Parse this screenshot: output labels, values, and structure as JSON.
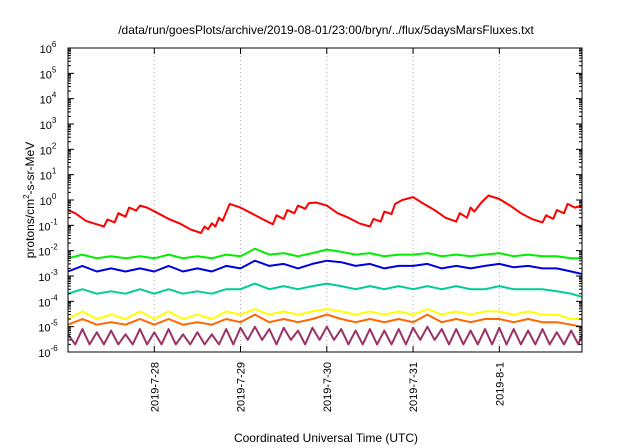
{
  "chart_data": {
    "type": "line",
    "title": "/data/run/goesPlots/archive/2019-08-01/23:00/bryn/../flux/5daysMarsFluxes.txt",
    "xlabel": "Coordinated Universal Time (UTC)",
    "ylabel": {
      "base": "protons/cm",
      "sup": "2",
      "rest": "-s-sr-MeV"
    },
    "y_scale": "log",
    "ylim": [
      1e-06,
      1000000.0
    ],
    "y_ticks": [
      {
        "base": "10",
        "exp": "-6",
        "value": 1e-06
      },
      {
        "base": "10",
        "exp": "-5",
        "value": 1e-05
      },
      {
        "base": "10",
        "exp": "-4",
        "value": 0.0001
      },
      {
        "base": "10",
        "exp": "-3",
        "value": 0.001
      },
      {
        "base": "10",
        "exp": "-2",
        "value": 0.01
      },
      {
        "base": "10",
        "exp": "-1",
        "value": 0.1
      },
      {
        "base": "10",
        "exp": "0",
        "value": 1
      },
      {
        "base": "10",
        "exp": "1",
        "value": 10
      },
      {
        "base": "10",
        "exp": "2",
        "value": 100
      },
      {
        "base": "10",
        "exp": "3",
        "value": 1000
      },
      {
        "base": "10",
        "exp": "4",
        "value": 10000
      },
      {
        "base": "10",
        "exp": "5",
        "value": 100000
      },
      {
        "base": "10",
        "exp": "6",
        "value": 1000000
      }
    ],
    "xlim": [
      "2019-07-27 00:00",
      "2019-08-01 23:00"
    ],
    "x_ticks": [
      {
        "label": "2019-7-28",
        "value": "2019-07-28 00:00"
      },
      {
        "label": "2019-7-29",
        "value": "2019-07-29 00:00"
      },
      {
        "label": "2019-7-30",
        "value": "2019-07-30 00:00"
      },
      {
        "label": "2019-7-31",
        "value": "2019-07-31 00:00"
      },
      {
        "label": "2019-8-1",
        "value": "2019-08-01 00:00"
      }
    ],
    "grid": "vertical dotted at x ticks",
    "series": [
      {
        "color": "#ff0000",
        "x": [
          "2019-07-27 00:00",
          "2019-07-27 02:00",
          "2019-07-27 05:00",
          "2019-07-27 08:00",
          "2019-07-27 10:00",
          "2019-07-27 11:00",
          "2019-07-27 13:00",
          "2019-07-27 14:00",
          "2019-07-27 16:00",
          "2019-07-27 17:00",
          "2019-07-27 19:00",
          "2019-07-27 20:00",
          "2019-07-27 22:00",
          "2019-07-28 01:00",
          "2019-07-28 04:00",
          "2019-07-28 07:00",
          "2019-07-28 10:00",
          "2019-07-28 13:00",
          "2019-07-28 14:00",
          "2019-07-28 15:00",
          "2019-07-28 16:00",
          "2019-07-28 17:00",
          "2019-07-28 18:00",
          "2019-07-28 19:00",
          "2019-07-28 21:00",
          "2019-07-29 00:00",
          "2019-07-29 03:00",
          "2019-07-29 06:00",
          "2019-07-29 09:00",
          "2019-07-29 10:00",
          "2019-07-29 12:00",
          "2019-07-29 13:00",
          "2019-07-29 15:00",
          "2019-07-29 16:00",
          "2019-07-29 18:00",
          "2019-07-29 19:00",
          "2019-07-29 21:00",
          "2019-07-30 00:00",
          "2019-07-30 03:00",
          "2019-07-30 06:00",
          "2019-07-30 09:00",
          "2019-07-30 12:00",
          "2019-07-30 13:00",
          "2019-07-30 15:00",
          "2019-07-30 16:00",
          "2019-07-30 18:00",
          "2019-07-30 19:00",
          "2019-07-30 21:00",
          "2019-07-31 00:00",
          "2019-07-31 03:00",
          "2019-07-31 06:00",
          "2019-07-31 09:00",
          "2019-07-31 12:00",
          "2019-07-31 13:00",
          "2019-07-31 15:00",
          "2019-07-31 16:00",
          "2019-07-31 17:00",
          "2019-07-31 19:00",
          "2019-07-31 21:00",
          "2019-08-01 00:00",
          "2019-08-01 03:00",
          "2019-08-01 06:00",
          "2019-08-01 09:00",
          "2019-08-01 12:00",
          "2019-08-01 13:00",
          "2019-08-01 15:00",
          "2019-08-01 16:00",
          "2019-08-01 18:00",
          "2019-08-01 19:00",
          "2019-08-01 21:00",
          "2019-08-01 23:00"
        ],
        "values": [
          0.4,
          0.3,
          0.15,
          0.11,
          0.09,
          0.17,
          0.13,
          0.3,
          0.22,
          0.5,
          0.38,
          0.6,
          0.5,
          0.3,
          0.18,
          0.12,
          0.07,
          0.05,
          0.09,
          0.07,
          0.12,
          0.09,
          0.2,
          0.15,
          0.7,
          0.5,
          0.3,
          0.18,
          0.11,
          0.25,
          0.18,
          0.4,
          0.3,
          0.6,
          0.45,
          0.75,
          0.8,
          0.6,
          0.3,
          0.2,
          0.12,
          0.09,
          0.18,
          0.14,
          0.35,
          0.28,
          0.7,
          1.0,
          1.3,
          0.7,
          0.4,
          0.2,
          0.14,
          0.3,
          0.2,
          0.5,
          0.35,
          0.8,
          1.5,
          1.1,
          0.6,
          0.3,
          0.18,
          0.13,
          0.25,
          0.18,
          0.4,
          0.3,
          0.7,
          0.5,
          0.6
        ]
      },
      {
        "color": "#00ee00",
        "x": [
          "2019-07-27 00:00",
          "2019-07-27 04:00",
          "2019-07-27 08:00",
          "2019-07-27 12:00",
          "2019-07-27 16:00",
          "2019-07-27 20:00",
          "2019-07-28 00:00",
          "2019-07-28 04:00",
          "2019-07-28 08:00",
          "2019-07-28 12:00",
          "2019-07-28 16:00",
          "2019-07-28 20:00",
          "2019-07-29 00:00",
          "2019-07-29 04:00",
          "2019-07-29 08:00",
          "2019-07-29 12:00",
          "2019-07-29 16:00",
          "2019-07-29 20:00",
          "2019-07-30 00:00",
          "2019-07-30 04:00",
          "2019-07-30 08:00",
          "2019-07-30 12:00",
          "2019-07-30 16:00",
          "2019-07-30 20:00",
          "2019-07-31 00:00",
          "2019-07-31 04:00",
          "2019-07-31 08:00",
          "2019-07-31 12:00",
          "2019-07-31 16:00",
          "2019-07-31 20:00",
          "2019-08-01 00:00",
          "2019-08-01 04:00",
          "2019-08-01 08:00",
          "2019-08-01 12:00",
          "2019-08-01 16:00",
          "2019-08-01 20:00",
          "2019-08-01 23:00"
        ],
        "values": [
          0.005,
          0.007,
          0.005,
          0.006,
          0.005,
          0.006,
          0.005,
          0.007,
          0.005,
          0.006,
          0.005,
          0.007,
          0.006,
          0.012,
          0.007,
          0.008,
          0.006,
          0.008,
          0.011,
          0.009,
          0.007,
          0.008,
          0.006,
          0.007,
          0.007,
          0.008,
          0.006,
          0.007,
          0.006,
          0.007,
          0.008,
          0.006,
          0.007,
          0.006,
          0.006,
          0.005,
          0.005
        ]
      },
      {
        "color": "#0000dd",
        "x": [
          "2019-07-27 00:00",
          "2019-07-27 04:00",
          "2019-07-27 08:00",
          "2019-07-27 12:00",
          "2019-07-27 16:00",
          "2019-07-27 20:00",
          "2019-07-28 00:00",
          "2019-07-28 04:00",
          "2019-07-28 08:00",
          "2019-07-28 12:00",
          "2019-07-28 16:00",
          "2019-07-28 20:00",
          "2019-07-29 00:00",
          "2019-07-29 04:00",
          "2019-07-29 08:00",
          "2019-07-29 12:00",
          "2019-07-29 16:00",
          "2019-07-29 20:00",
          "2019-07-30 00:00",
          "2019-07-30 04:00",
          "2019-07-30 08:00",
          "2019-07-30 12:00",
          "2019-07-30 16:00",
          "2019-07-30 20:00",
          "2019-07-31 00:00",
          "2019-07-31 04:00",
          "2019-07-31 08:00",
          "2019-07-31 12:00",
          "2019-07-31 16:00",
          "2019-07-31 20:00",
          "2019-08-01 00:00",
          "2019-08-01 04:00",
          "2019-08-01 08:00",
          "2019-08-01 12:00",
          "2019-08-01 16:00",
          "2019-08-01 20:00",
          "2019-08-01 23:00"
        ],
        "values": [
          0.0015,
          0.0025,
          0.0015,
          0.002,
          0.0015,
          0.002,
          0.0015,
          0.0025,
          0.0015,
          0.002,
          0.0015,
          0.0025,
          0.002,
          0.004,
          0.0025,
          0.003,
          0.002,
          0.003,
          0.004,
          0.0035,
          0.0025,
          0.003,
          0.002,
          0.0025,
          0.0025,
          0.003,
          0.002,
          0.0025,
          0.002,
          0.0025,
          0.003,
          0.0022,
          0.0025,
          0.002,
          0.002,
          0.0015,
          0.0012
        ]
      },
      {
        "color": "#00cc99",
        "x": [
          "2019-07-27 00:00",
          "2019-07-27 04:00",
          "2019-07-27 08:00",
          "2019-07-27 12:00",
          "2019-07-27 16:00",
          "2019-07-27 20:00",
          "2019-07-28 00:00",
          "2019-07-28 04:00",
          "2019-07-28 08:00",
          "2019-07-28 12:00",
          "2019-07-28 16:00",
          "2019-07-28 20:00",
          "2019-07-29 00:00",
          "2019-07-29 04:00",
          "2019-07-29 08:00",
          "2019-07-29 12:00",
          "2019-07-29 16:00",
          "2019-07-29 20:00",
          "2019-07-30 00:00",
          "2019-07-30 04:00",
          "2019-07-30 08:00",
          "2019-07-30 12:00",
          "2019-07-30 16:00",
          "2019-07-30 20:00",
          "2019-07-31 00:00",
          "2019-07-31 04:00",
          "2019-07-31 08:00",
          "2019-07-31 12:00",
          "2019-07-31 16:00",
          "2019-07-31 20:00",
          "2019-08-01 00:00",
          "2019-08-01 04:00",
          "2019-08-01 08:00",
          "2019-08-01 12:00",
          "2019-08-01 16:00",
          "2019-08-01 20:00",
          "2019-08-01 23:00"
        ],
        "values": [
          0.0002,
          0.0003,
          0.0002,
          0.00025,
          0.0002,
          0.0003,
          0.0002,
          0.0003,
          0.0002,
          0.00025,
          0.0002,
          0.0003,
          0.0003,
          0.0005,
          0.0003,
          0.0004,
          0.0003,
          0.0004,
          0.0005,
          0.0004,
          0.0003,
          0.0004,
          0.0003,
          0.0004,
          0.0003,
          0.0004,
          0.0003,
          0.0004,
          0.0003,
          0.0003,
          0.0004,
          0.0003,
          0.0003,
          0.0003,
          0.00025,
          0.0002,
          0.00015
        ]
      },
      {
        "color": "#ffff00",
        "x": [
          "2019-07-27 00:00",
          "2019-07-27 04:00",
          "2019-07-27 08:00",
          "2019-07-27 12:00",
          "2019-07-27 16:00",
          "2019-07-27 20:00",
          "2019-07-28 00:00",
          "2019-07-28 04:00",
          "2019-07-28 08:00",
          "2019-07-28 12:00",
          "2019-07-28 16:00",
          "2019-07-28 20:00",
          "2019-07-29 00:00",
          "2019-07-29 04:00",
          "2019-07-29 08:00",
          "2019-07-29 12:00",
          "2019-07-29 16:00",
          "2019-07-29 20:00",
          "2019-07-30 00:00",
          "2019-07-30 04:00",
          "2019-07-30 08:00",
          "2019-07-30 12:00",
          "2019-07-30 16:00",
          "2019-07-30 20:00",
          "2019-07-31 00:00",
          "2019-07-31 04:00",
          "2019-07-31 08:00",
          "2019-07-31 12:00",
          "2019-07-31 16:00",
          "2019-07-31 20:00",
          "2019-08-01 00:00",
          "2019-08-01 04:00",
          "2019-08-01 08:00",
          "2019-08-01 12:00",
          "2019-08-01 16:00",
          "2019-08-01 20:00",
          "2019-08-01 23:00"
        ],
        "values": [
          2e-05,
          4e-05,
          2e-05,
          3e-05,
          2e-05,
          4e-05,
          2e-05,
          4e-05,
          2e-05,
          3e-05,
          2e-05,
          4e-05,
          3e-05,
          5e-05,
          3e-05,
          4e-05,
          3e-05,
          4e-05,
          5e-05,
          4e-05,
          3e-05,
          4e-05,
          3e-05,
          4e-05,
          3e-05,
          5e-05,
          3e-05,
          4e-05,
          3e-05,
          4e-05,
          4e-05,
          3e-05,
          4e-05,
          3e-05,
          3e-05,
          2e-05,
          2e-05
        ]
      },
      {
        "color": "#ff6600",
        "x": [
          "2019-07-27 00:00",
          "2019-07-27 04:00",
          "2019-07-27 08:00",
          "2019-07-27 12:00",
          "2019-07-27 16:00",
          "2019-07-27 20:00",
          "2019-07-28 00:00",
          "2019-07-28 04:00",
          "2019-07-28 08:00",
          "2019-07-28 12:00",
          "2019-07-28 16:00",
          "2019-07-28 20:00",
          "2019-07-29 00:00",
          "2019-07-29 04:00",
          "2019-07-29 08:00",
          "2019-07-29 12:00",
          "2019-07-29 16:00",
          "2019-07-29 20:00",
          "2019-07-30 00:00",
          "2019-07-30 04:00",
          "2019-07-30 08:00",
          "2019-07-30 12:00",
          "2019-07-30 16:00",
          "2019-07-30 20:00",
          "2019-07-31 00:00",
          "2019-07-31 04:00",
          "2019-07-31 08:00",
          "2019-07-31 12:00",
          "2019-07-31 16:00",
          "2019-07-31 20:00",
          "2019-08-01 00:00",
          "2019-08-01 04:00",
          "2019-08-01 08:00",
          "2019-08-01 12:00",
          "2019-08-01 16:00",
          "2019-08-01 20:00",
          "2019-08-01 23:00"
        ],
        "values": [
          1.2e-05,
          2e-05,
          1.2e-05,
          1.5e-05,
          1.2e-05,
          2e-05,
          1.2e-05,
          2e-05,
          1.2e-05,
          1.5e-05,
          1.2e-05,
          2e-05,
          1.5e-05,
          3e-05,
          1.5e-05,
          2e-05,
          1.5e-05,
          2e-05,
          3e-05,
          2e-05,
          1.5e-05,
          2e-05,
          1.5e-05,
          2e-05,
          1.5e-05,
          3e-05,
          1.5e-05,
          2e-05,
          1.5e-05,
          2e-05,
          2e-05,
          1.5e-05,
          2e-05,
          1.5e-05,
          1.5e-05,
          1.2e-05,
          1e-05
        ]
      },
      {
        "color": "#993366",
        "x": [
          "2019-07-27 00:00",
          "2019-07-27 02:00",
          "2019-07-27 04:00",
          "2019-07-27 06:00",
          "2019-07-27 08:00",
          "2019-07-27 10:00",
          "2019-07-27 12:00",
          "2019-07-27 14:00",
          "2019-07-27 16:00",
          "2019-07-27 18:00",
          "2019-07-27 20:00",
          "2019-07-27 22:00",
          "2019-07-28 00:00",
          "2019-07-28 02:00",
          "2019-07-28 04:00",
          "2019-07-28 06:00",
          "2019-07-28 08:00",
          "2019-07-28 10:00",
          "2019-07-28 12:00",
          "2019-07-28 14:00",
          "2019-07-28 16:00",
          "2019-07-28 18:00",
          "2019-07-28 20:00",
          "2019-07-28 22:00",
          "2019-07-29 00:00",
          "2019-07-29 02:00",
          "2019-07-29 04:00",
          "2019-07-29 06:00",
          "2019-07-29 08:00",
          "2019-07-29 10:00",
          "2019-07-29 12:00",
          "2019-07-29 14:00",
          "2019-07-29 16:00",
          "2019-07-29 18:00",
          "2019-07-29 20:00",
          "2019-07-29 22:00",
          "2019-07-30 00:00",
          "2019-07-30 02:00",
          "2019-07-30 04:00",
          "2019-07-30 06:00",
          "2019-07-30 08:00",
          "2019-07-30 10:00",
          "2019-07-30 12:00",
          "2019-07-30 14:00",
          "2019-07-30 16:00",
          "2019-07-30 18:00",
          "2019-07-30 20:00",
          "2019-07-30 22:00",
          "2019-07-31 00:00",
          "2019-07-31 02:00",
          "2019-07-31 04:00",
          "2019-07-31 06:00",
          "2019-07-31 08:00",
          "2019-07-31 10:00",
          "2019-07-31 12:00",
          "2019-07-31 14:00",
          "2019-07-31 16:00",
          "2019-07-31 18:00",
          "2019-07-31 20:00",
          "2019-07-31 22:00",
          "2019-08-01 00:00",
          "2019-08-01 02:00",
          "2019-08-01 04:00",
          "2019-08-01 06:00",
          "2019-08-01 08:00",
          "2019-08-01 10:00",
          "2019-08-01 12:00",
          "2019-08-01 14:00",
          "2019-08-01 16:00",
          "2019-08-01 18:00",
          "2019-08-01 20:00",
          "2019-08-01 22:00",
          "2019-08-01 23:00"
        ],
        "values": [
          5e-06,
          2e-06,
          8e-06,
          2e-06,
          6e-06,
          2e-06,
          7e-06,
          2e-06,
          5e-06,
          2e-06,
          8e-06,
          2e-06,
          6e-06,
          2e-06,
          8e-06,
          2e-06,
          5e-06,
          2e-06,
          6e-06,
          2e-06,
          5e-06,
          2e-06,
          8e-06,
          2e-06,
          9e-06,
          3e-06,
          1e-05,
          3e-06,
          8e-06,
          2e-06,
          9e-06,
          3e-06,
          7e-06,
          2e-06,
          9e-06,
          3e-06,
          1e-05,
          3e-06,
          8e-06,
          2e-06,
          7e-06,
          2e-06,
          8e-06,
          2e-06,
          7e-06,
          2e-06,
          8e-06,
          2e-06,
          9e-06,
          3e-06,
          1e-05,
          3e-06,
          8e-06,
          2e-06,
          8e-06,
          2e-06,
          7e-06,
          2e-06,
          8e-06,
          2e-06,
          9e-06,
          2e-06,
          8e-06,
          2e-06,
          7e-06,
          2e-06,
          8e-06,
          2e-06,
          6e-06,
          2e-06,
          7e-06,
          2e-06,
          5e-06
        ]
      }
    ]
  }
}
